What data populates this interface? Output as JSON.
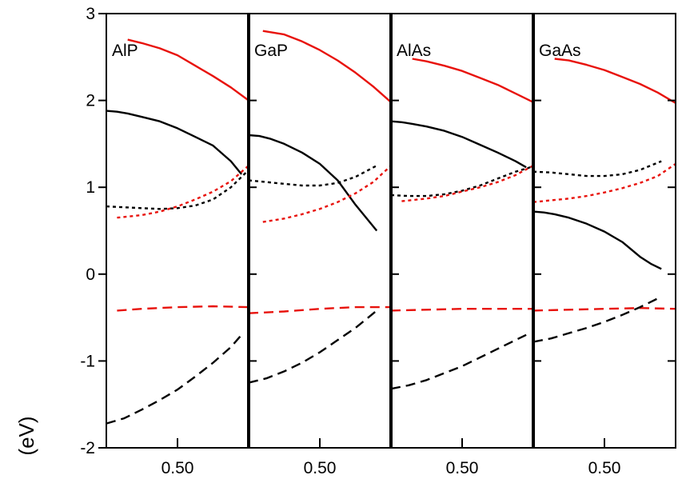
{
  "chart_data": {
    "type": "line",
    "ylabel": "(eV)",
    "ylim": [
      -2,
      3
    ],
    "yticks": [
      "-2",
      "-1",
      "0",
      "1",
      "2",
      "3"
    ],
    "xlim": [
      0.3,
      0.7
    ],
    "xtick_label": "0.50",
    "grid": false,
    "legend": "none",
    "colors": {
      "red": "#e8120c",
      "black": "#000000"
    },
    "panels": [
      {
        "label": "AlP",
        "series": [
          {
            "color": "red",
            "dash": "solid",
            "x": [
              0.36,
              0.4,
              0.45,
              0.5,
              0.55,
              0.6,
              0.65,
              0.7
            ],
            "y": [
              2.7,
              2.66,
              2.6,
              2.52,
              2.4,
              2.28,
              2.15,
              2.0
            ]
          },
          {
            "color": "black",
            "dash": "solid",
            "x": [
              0.3,
              0.33,
              0.36,
              0.4,
              0.45,
              0.5,
              0.55,
              0.6,
              0.65,
              0.68
            ],
            "y": [
              1.88,
              1.87,
              1.85,
              1.81,
              1.76,
              1.68,
              1.58,
              1.48,
              1.3,
              1.15
            ]
          },
          {
            "color": "black",
            "dash": "dotted",
            "x": [
              0.3,
              0.35,
              0.4,
              0.45,
              0.5,
              0.55,
              0.6,
              0.65,
              0.7
            ],
            "y": [
              0.78,
              0.77,
              0.76,
              0.75,
              0.76,
              0.79,
              0.86,
              1.0,
              1.2
            ]
          },
          {
            "color": "red",
            "dash": "dotted",
            "x": [
              0.33,
              0.4,
              0.45,
              0.5,
              0.55,
              0.6,
              0.65,
              0.7
            ],
            "y": [
              0.65,
              0.68,
              0.72,
              0.78,
              0.86,
              0.95,
              1.07,
              1.25
            ]
          },
          {
            "color": "red",
            "dash": "dashed",
            "x": [
              0.33,
              0.4,
              0.5,
              0.6,
              0.7
            ],
            "y": [
              -0.42,
              -0.4,
              -0.38,
              -0.37,
              -0.38
            ]
          },
          {
            "color": "black",
            "dash": "dashed",
            "x": [
              0.3,
              0.35,
              0.4,
              0.45,
              0.5,
              0.55,
              0.6,
              0.65,
              0.68
            ],
            "y": [
              -1.72,
              -1.66,
              -1.56,
              -1.45,
              -1.33,
              -1.18,
              -1.02,
              -0.84,
              -0.7
            ]
          }
        ]
      },
      {
        "label": "GaP",
        "series": [
          {
            "color": "red",
            "dash": "solid",
            "x": [
              0.34,
              0.4,
              0.45,
              0.5,
              0.55,
              0.6,
              0.65,
              0.7
            ],
            "y": [
              2.8,
              2.76,
              2.68,
              2.58,
              2.46,
              2.32,
              2.16,
              1.98
            ]
          },
          {
            "color": "black",
            "dash": "solid",
            "x": [
              0.3,
              0.33,
              0.36,
              0.4,
              0.45,
              0.5,
              0.55,
              0.6,
              0.63,
              0.66
            ],
            "y": [
              1.6,
              1.59,
              1.56,
              1.5,
              1.4,
              1.27,
              1.08,
              0.8,
              0.65,
              0.5
            ]
          },
          {
            "color": "black",
            "dash": "dotted",
            "x": [
              0.3,
              0.35,
              0.4,
              0.45,
              0.5,
              0.55,
              0.6,
              0.66
            ],
            "y": [
              1.08,
              1.06,
              1.04,
              1.02,
              1.02,
              1.05,
              1.12,
              1.25
            ]
          },
          {
            "color": "red",
            "dash": "dotted",
            "x": [
              0.34,
              0.4,
              0.45,
              0.5,
              0.55,
              0.6,
              0.65,
              0.7
            ],
            "y": [
              0.6,
              0.64,
              0.69,
              0.75,
              0.83,
              0.93,
              1.06,
              1.25
            ]
          },
          {
            "color": "red",
            "dash": "dashed",
            "x": [
              0.3,
              0.4,
              0.5,
              0.6,
              0.7
            ],
            "y": [
              -0.45,
              -0.43,
              -0.4,
              -0.38,
              -0.38
            ]
          },
          {
            "color": "black",
            "dash": "dashed",
            "x": [
              0.3,
              0.35,
              0.4,
              0.45,
              0.5,
              0.55,
              0.6,
              0.63,
              0.66
            ],
            "y": [
              -1.25,
              -1.2,
              -1.12,
              -1.02,
              -0.9,
              -0.76,
              -0.62,
              -0.52,
              -0.42
            ]
          }
        ]
      },
      {
        "label": "AlAs",
        "series": [
          {
            "color": "red",
            "dash": "solid",
            "x": [
              0.36,
              0.4,
              0.45,
              0.5,
              0.55,
              0.6,
              0.65,
              0.7
            ],
            "y": [
              2.48,
              2.45,
              2.4,
              2.34,
              2.26,
              2.18,
              2.08,
              1.98
            ]
          },
          {
            "color": "black",
            "dash": "solid",
            "x": [
              0.3,
              0.33,
              0.36,
              0.4,
              0.45,
              0.5,
              0.55,
              0.6,
              0.65,
              0.68
            ],
            "y": [
              1.76,
              1.75,
              1.73,
              1.7,
              1.65,
              1.58,
              1.49,
              1.4,
              1.3,
              1.23
            ]
          },
          {
            "color": "black",
            "dash": "dotted",
            "x": [
              0.3,
              0.35,
              0.4,
              0.45,
              0.5,
              0.55,
              0.6,
              0.65,
              0.7
            ],
            "y": [
              0.91,
              0.9,
              0.9,
              0.92,
              0.96,
              1.02,
              1.1,
              1.18,
              1.24
            ]
          },
          {
            "color": "red",
            "dash": "dotted",
            "x": [
              0.33,
              0.4,
              0.45,
              0.5,
              0.55,
              0.6,
              0.65,
              0.7
            ],
            "y": [
              0.84,
              0.87,
              0.9,
              0.95,
              1.0,
              1.06,
              1.14,
              1.25
            ]
          },
          {
            "color": "red",
            "dash": "dashed",
            "x": [
              0.3,
              0.4,
              0.5,
              0.6,
              0.7
            ],
            "y": [
              -0.42,
              -0.41,
              -0.4,
              -0.4,
              -0.4
            ]
          },
          {
            "color": "black",
            "dash": "dashed",
            "x": [
              0.3,
              0.35,
              0.4,
              0.45,
              0.5,
              0.55,
              0.6,
              0.65,
              0.68
            ],
            "y": [
              -1.32,
              -1.28,
              -1.22,
              -1.14,
              -1.06,
              -0.96,
              -0.86,
              -0.76,
              -0.7
            ]
          }
        ]
      },
      {
        "label": "GaAs",
        "series": [
          {
            "color": "red",
            "dash": "solid",
            "x": [
              0.36,
              0.4,
              0.45,
              0.5,
              0.55,
              0.6,
              0.65,
              0.7
            ],
            "y": [
              2.48,
              2.46,
              2.41,
              2.35,
              2.27,
              2.19,
              2.09,
              1.97
            ]
          },
          {
            "color": "black",
            "dash": "solid",
            "x": [
              0.3,
              0.33,
              0.36,
              0.4,
              0.45,
              0.5,
              0.55,
              0.6,
              0.63,
              0.66
            ],
            "y": [
              0.72,
              0.71,
              0.69,
              0.65,
              0.58,
              0.49,
              0.37,
              0.2,
              0.12,
              0.06
            ]
          },
          {
            "color": "black",
            "dash": "dotted",
            "x": [
              0.3,
              0.35,
              0.4,
              0.45,
              0.5,
              0.55,
              0.6,
              0.66
            ],
            "y": [
              1.18,
              1.17,
              1.15,
              1.13,
              1.13,
              1.15,
              1.2,
              1.3
            ]
          },
          {
            "color": "red",
            "dash": "dotted",
            "x": [
              0.3,
              0.35,
              0.4,
              0.45,
              0.5,
              0.55,
              0.6,
              0.65,
              0.7
            ],
            "y": [
              0.83,
              0.85,
              0.87,
              0.9,
              0.94,
              0.99,
              1.05,
              1.13,
              1.27
            ]
          },
          {
            "color": "red",
            "dash": "dashed",
            "x": [
              0.3,
              0.4,
              0.5,
              0.6,
              0.7
            ],
            "y": [
              -0.42,
              -0.41,
              -0.4,
              -0.39,
              -0.4
            ]
          },
          {
            "color": "black",
            "dash": "dashed",
            "x": [
              0.3,
              0.35,
              0.4,
              0.45,
              0.5,
              0.55,
              0.6,
              0.63,
              0.66
            ],
            "y": [
              -0.78,
              -0.74,
              -0.68,
              -0.62,
              -0.55,
              -0.47,
              -0.38,
              -0.32,
              -0.26
            ]
          }
        ]
      }
    ]
  }
}
